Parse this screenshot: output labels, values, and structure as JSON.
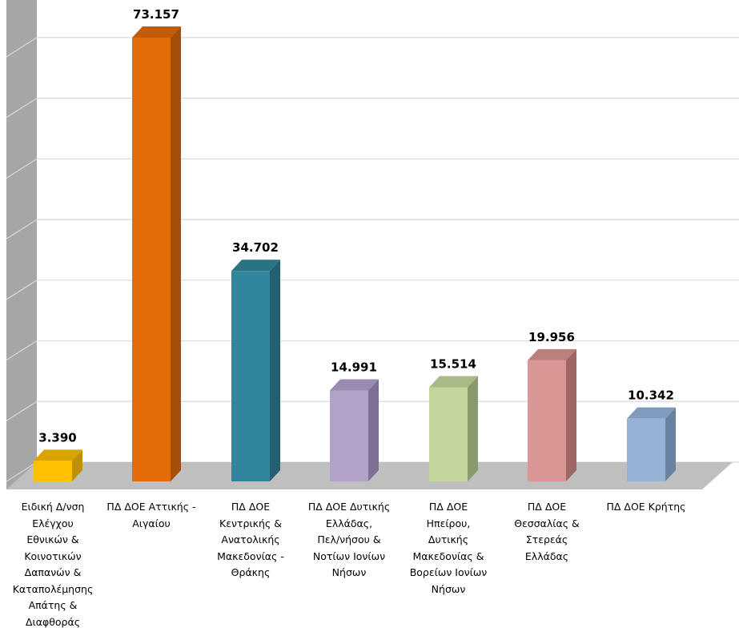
{
  "chart_data": {
    "type": "bar",
    "title": "",
    "xlabel": "",
    "ylabel": "",
    "ylim": [
      0,
      80000
    ],
    "grid": true,
    "legend": "none",
    "categories": [
      "Ειδική Δ/νση Ελέγχου Εθνικών & Κοινοτικών Δαπανών & Καταπολέμησης Απάτης & Διαφθοράς",
      "ΠΔ ΔΟΕ Αττικής - Αιγαίου",
      "ΠΔ ΔΟΕ Κεντρικής & Ανατολικής Μακεδονίας - Θράκης",
      "ΠΔ ΔΟΕ Δυτικής Ελλάδας, Πελ/νήσου & Νοτίων Ιονίων Νήσων",
      "ΠΔ ΔΟΕ Ηπείρου, Δυτικής Μακεδονίας & Βορείων Ιονίων Νήσων",
      "ΠΔ ΔΟΕ Θεσσαλίας & Στερεάς Ελλάδας",
      "ΠΔ ΔΟΕ Κρήτης"
    ],
    "category_lines": [
      [
        "Ειδική Δ/νση",
        "Ελέγχου",
        "Εθνικών &",
        "Κοινοτικών",
        "Δαπανών &",
        "Καταπολέμησης",
        "Απάτης &",
        "Διαφθοράς"
      ],
      [
        "ΠΔ ΔΟΕ Αττικής -",
        "Αιγαίου"
      ],
      [
        "ΠΔ ΔΟΕ",
        "Κεντρικής &",
        "Ανατολικής",
        "Μακεδονίας -",
        "Θράκης"
      ],
      [
        "ΠΔ ΔΟΕ Δυτικής",
        "Ελλάδας,",
        "Πελ/νήσου &",
        "Νοτίων Ιονίων",
        "Νήσων"
      ],
      [
        "ΠΔ ΔΟΕ",
        "Ηπείρου,",
        "Δυτικής",
        "Μακεδονίας &",
        "Βορείων Ιονίων",
        "Νήσων"
      ],
      [
        "ΠΔ ΔΟΕ",
        "Θεσσαλίας &",
        "Στερεάς",
        "Ελλάδας"
      ],
      [
        "ΠΔ ΔΟΕ Κρήτης"
      ]
    ],
    "values": [
      3390,
      73157,
      34702,
      14991,
      15514,
      19956,
      10342
    ],
    "value_labels": [
      "3.390",
      "73.157",
      "34.702",
      "14.991",
      "15.514",
      "19.956",
      "10.342"
    ],
    "colors": {
      "front": [
        "#FFC000",
        "#E36C09",
        "#31859C",
        "#B2A2C7",
        "#C3D69B",
        "#D99694",
        "#95B3D7"
      ],
      "side": [
        "#BF9000",
        "#A64E07",
        "#235F70",
        "#7E6F96",
        "#8A9A6C",
        "#9E6664",
        "#6982A0"
      ],
      "top": [
        "#D9A300",
        "#C25C08",
        "#2A7385",
        "#9A8CB0",
        "#A9BA86",
        "#BB7F7D",
        "#7F9BBE"
      ]
    },
    "wall_color": "#A6A6A6",
    "floor_color": "#BFBFBF",
    "grid_color": "#D9D9D9"
  }
}
